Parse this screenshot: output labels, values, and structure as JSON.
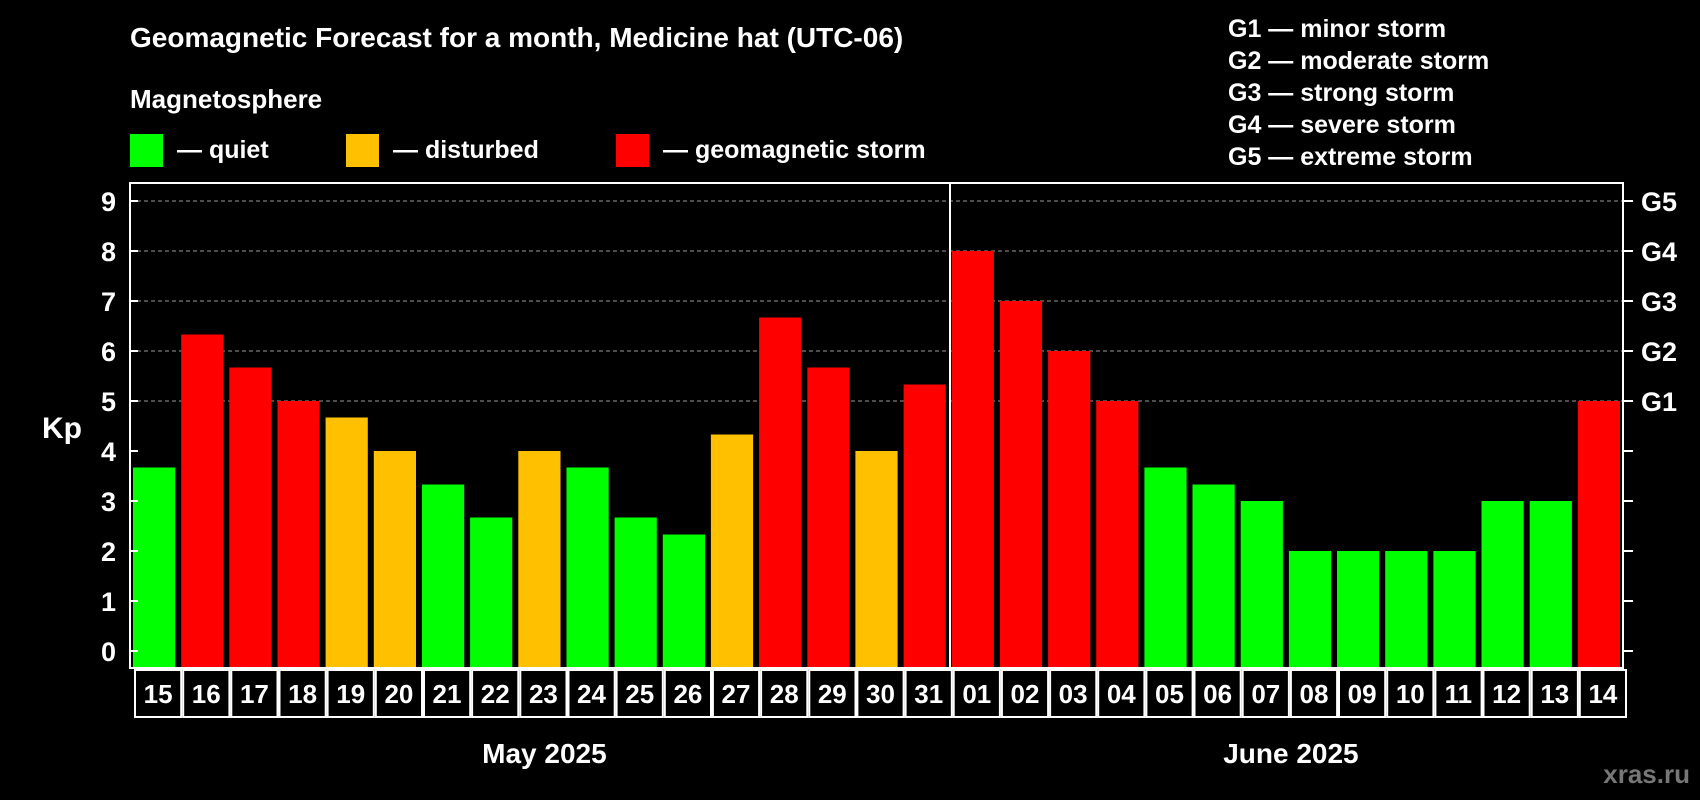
{
  "chart_data": {
    "type": "bar",
    "title": "Geomagnetic Forecast for a month, Medicine hat (UTC-06)",
    "legend_title": "Magnetosphere",
    "legend": [
      {
        "key": "quiet",
        "label": "— quiet",
        "color": "#00ff00"
      },
      {
        "key": "disturbed",
        "label": "— disturbed",
        "color": "#ffc000"
      },
      {
        "key": "storm",
        "label": "— geomagnetic storm",
        "color": "#ff0000"
      }
    ],
    "storm_levels": [
      "G1 — minor storm",
      "G2 — moderate storm",
      "G3 — strong storm",
      "G4 — severe storm",
      "G5 — extreme storm"
    ],
    "ylabel": "Kp",
    "ylim": [
      0,
      9
    ],
    "y_ticks": [
      "0",
      "1",
      "2",
      "3",
      "4",
      "5",
      "6",
      "7",
      "8",
      "9"
    ],
    "right_axis_labels": [
      {
        "kp": 5,
        "label": "G1"
      },
      {
        "kp": 6,
        "label": "G2"
      },
      {
        "kp": 7,
        "label": "G3"
      },
      {
        "kp": 8,
        "label": "G4"
      },
      {
        "kp": 9,
        "label": "G5"
      }
    ],
    "grid": "dashed horizontal at Kp 5-9",
    "categories": [
      "15",
      "16",
      "17",
      "18",
      "19",
      "20",
      "21",
      "22",
      "23",
      "24",
      "25",
      "26",
      "27",
      "28",
      "29",
      "30",
      "31",
      "01",
      "02",
      "03",
      "04",
      "05",
      "06",
      "07",
      "08",
      "09",
      "10",
      "11",
      "12",
      "13",
      "14"
    ],
    "values": [
      3.67,
      6.33,
      5.67,
      5,
      4.67,
      4,
      3.33,
      2.67,
      4,
      3.67,
      2.67,
      2.33,
      4.33,
      6.67,
      5.67,
      4,
      5.33,
      8,
      7,
      6,
      5,
      3.67,
      3.33,
      3,
      2,
      2,
      2,
      2,
      3,
      3,
      5
    ],
    "levels": [
      "quiet",
      "storm",
      "storm",
      "storm",
      "disturbed",
      "disturbed",
      "quiet",
      "quiet",
      "disturbed",
      "quiet",
      "quiet",
      "quiet",
      "disturbed",
      "storm",
      "storm",
      "disturbed",
      "storm",
      "storm",
      "storm",
      "storm",
      "storm",
      "quiet",
      "quiet",
      "quiet",
      "quiet",
      "quiet",
      "quiet",
      "quiet",
      "quiet",
      "quiet",
      "storm"
    ],
    "months": [
      {
        "label": "May 2025",
        "count": 17
      },
      {
        "label": "June 2025",
        "count": 14
      }
    ]
  },
  "watermark": "xras.ru"
}
